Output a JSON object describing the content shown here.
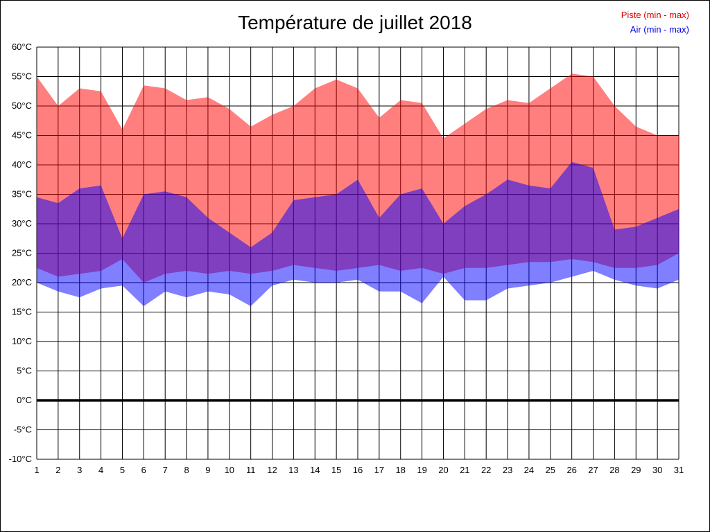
{
  "chart_data": {
    "type": "area",
    "title": "Température de juillet 2018",
    "legend": [
      {
        "label": "Piste (min - max)",
        "color": "#e00000"
      },
      {
        "label": "Air (min - max)",
        "color": "#0000e0"
      }
    ],
    "x": [
      1,
      2,
      3,
      4,
      5,
      6,
      7,
      8,
      9,
      10,
      11,
      12,
      13,
      14,
      15,
      16,
      17,
      18,
      19,
      20,
      21,
      22,
      23,
      24,
      25,
      26,
      27,
      28,
      29,
      30,
      31
    ],
    "xlabel": "",
    "ylabel": "",
    "ylim": [
      -10,
      60
    ],
    "grid": true,
    "zero_line": true,
    "yticks": [
      [
        60,
        "60°C"
      ],
      [
        55,
        "55°C"
      ],
      [
        50,
        "50°C"
      ],
      [
        45,
        "45°C"
      ],
      [
        40,
        "40°C"
      ],
      [
        35,
        "35°C"
      ],
      [
        30,
        "30°C"
      ],
      [
        25,
        "25°C"
      ],
      [
        20,
        "20°C"
      ],
      [
        15,
        "15°C"
      ],
      [
        10,
        "10°C"
      ],
      [
        5,
        "5°C"
      ],
      [
        0,
        "0°C"
      ],
      [
        -5,
        "-5°C"
      ],
      [
        -10,
        "-10°C"
      ]
    ],
    "series": [
      {
        "name": "Piste (min - max)",
        "fill": "rgba(255,0,0,0.5)",
        "max": [
          55,
          50,
          53,
          52.5,
          46,
          53.5,
          53,
          51,
          51.5,
          49.5,
          46.5,
          48.5,
          50,
          53,
          54.5,
          53,
          48,
          51,
          50.5,
          44.5,
          47,
          49.5,
          51,
          50.5,
          53,
          55.5,
          55,
          50,
          46.5,
          45,
          45
        ],
        "min": [
          22.5,
          21,
          21.5,
          22,
          24,
          20,
          21.5,
          22,
          21.5,
          22,
          21.5,
          22,
          23,
          22.5,
          22,
          22.5,
          23,
          22,
          22.5,
          21.5,
          22.5,
          22.5,
          23,
          23.5,
          23.5,
          24,
          23.5,
          22.5,
          22.5,
          23,
          25
        ]
      },
      {
        "name": "Air (min - max)",
        "fill": "rgba(0,0,255,0.5)",
        "max": [
          34.5,
          33.5,
          36,
          36.5,
          27.5,
          35,
          35.5,
          34.5,
          31,
          28.5,
          26,
          28.5,
          34,
          34.5,
          35,
          37.5,
          31,
          35,
          36,
          30,
          33,
          35,
          37.5,
          36.5,
          36,
          40.5,
          39.5,
          29,
          29.5,
          31,
          32.5
        ],
        "min": [
          20,
          18.5,
          17.5,
          19,
          19.5,
          16,
          18.5,
          17.5,
          18.5,
          18,
          16,
          19.5,
          20.5,
          20,
          20,
          20.5,
          18.5,
          18.5,
          16.5,
          21,
          17,
          17,
          19,
          19.5,
          20,
          21,
          22,
          20.5,
          19.5,
          19,
          20.5
        ]
      }
    ]
  }
}
